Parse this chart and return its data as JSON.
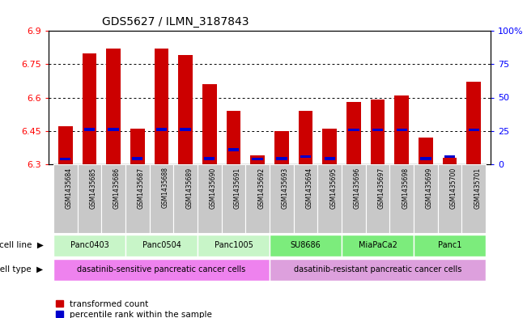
{
  "title": "GDS5627 / ILMN_3187843",
  "samples": [
    "GSM1435684",
    "GSM1435685",
    "GSM1435686",
    "GSM1435687",
    "GSM1435688",
    "GSM1435689",
    "GSM1435690",
    "GSM1435691",
    "GSM1435692",
    "GSM1435693",
    "GSM1435694",
    "GSM1435695",
    "GSM1435696",
    "GSM1435697",
    "GSM1435698",
    "GSM1435699",
    "GSM1435700",
    "GSM1435701"
  ],
  "red_values": [
    6.47,
    6.8,
    6.82,
    6.46,
    6.82,
    6.79,
    6.66,
    6.54,
    6.34,
    6.45,
    6.54,
    6.46,
    6.58,
    6.59,
    6.61,
    6.42,
    6.33,
    6.67
  ],
  "blue_y": [
    6.324,
    6.457,
    6.457,
    6.325,
    6.456,
    6.456,
    6.326,
    6.365,
    6.324,
    6.325,
    6.335,
    6.325,
    6.455,
    6.455,
    6.455,
    6.325,
    6.335,
    6.455
  ],
  "ymin": 6.3,
  "ymax": 6.9,
  "yticks": [
    6.3,
    6.45,
    6.6,
    6.75,
    6.9
  ],
  "ytick_labels": [
    "6.3",
    "6.45",
    "6.6",
    "6.75",
    "6.9"
  ],
  "right_yticks": [
    0,
    25,
    50,
    75,
    100
  ],
  "right_ytick_labels": [
    "0",
    "25",
    "50",
    "75",
    "100%"
  ],
  "cell_lines": [
    {
      "label": "Panc0403",
      "start": 0,
      "end": 3,
      "color": "#c8f5c8"
    },
    {
      "label": "Panc0504",
      "start": 3,
      "end": 6,
      "color": "#c8f5c8"
    },
    {
      "label": "Panc1005",
      "start": 6,
      "end": 9,
      "color": "#c8f5c8"
    },
    {
      "label": "SU8686",
      "start": 9,
      "end": 12,
      "color": "#7cec7c"
    },
    {
      "label": "MiaPaCa2",
      "start": 12,
      "end": 15,
      "color": "#7cec7c"
    },
    {
      "label": "Panc1",
      "start": 15,
      "end": 18,
      "color": "#7cec7c"
    }
  ],
  "cell_types": [
    {
      "label": "dasatinib-sensitive pancreatic cancer cells",
      "start": 0,
      "end": 9,
      "color": "#ee82ee"
    },
    {
      "label": "dasatinib-resistant pancreatic cancer cells",
      "start": 9,
      "end": 18,
      "color": "#dda0dd"
    }
  ],
  "bar_color": "#cc0000",
  "blue_color": "#0000cc",
  "sample_bg": "#c8c8c8",
  "bar_width": 0.6
}
